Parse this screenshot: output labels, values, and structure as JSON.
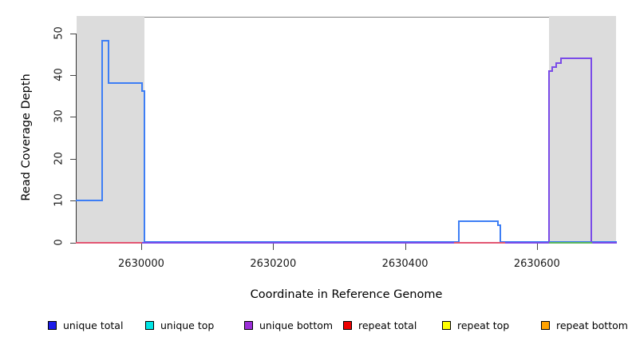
{
  "figure": {
    "x_axis_label": "Coordinate in Reference Genome",
    "y_axis_label": "Read Coverage Depth"
  },
  "legend": {
    "items": [
      {
        "label": "unique total",
        "color": "#1c1ce8"
      },
      {
        "label": "unique top",
        "color": "#00e6e6"
      },
      {
        "label": "unique bottom",
        "color": "#9c2fd8"
      },
      {
        "label": "repeat total",
        "color": "#ee0000"
      },
      {
        "label": "repeat top",
        "color": "#ffff00"
      },
      {
        "label": "repeat bottom",
        "color": "#ffa200"
      }
    ]
  },
  "chart_data": {
    "type": "line",
    "title": "",
    "xlabel": "Coordinate in Reference Genome",
    "ylabel": "Read Coverage Depth",
    "xlim": [
      2629902,
      2630720
    ],
    "ylim": [
      0,
      52
    ],
    "x_ticks": [
      2630000,
      2630200,
      2630400,
      2630600
    ],
    "y_ticks": [
      0,
      10,
      20,
      30,
      40,
      50
    ],
    "grid": false,
    "legend_position": "bottom",
    "highlight_bands_x": [
      [
        2629902,
        2630005
      ],
      [
        2630618,
        2630720
      ]
    ],
    "series": [
      {
        "name": "unique total (coverage line)",
        "color": "#3d7ef5",
        "style": "step",
        "points": [
          [
            2629902,
            10
          ],
          [
            2629941,
            10
          ],
          [
            2629941,
            48
          ],
          [
            2629950,
            48
          ],
          [
            2629950,
            38
          ],
          [
            2630001,
            38
          ],
          [
            2630001,
            36
          ],
          [
            2630005,
            36
          ],
          [
            2630005,
            0
          ],
          [
            2630482,
            0
          ],
          [
            2630482,
            5
          ],
          [
            2630541,
            5
          ],
          [
            2630541,
            4
          ],
          [
            2630545,
            4
          ],
          [
            2630545,
            0
          ],
          [
            2630720,
            0
          ]
        ]
      },
      {
        "name": "unique bottom (coverage line)",
        "color": "#7a4be8",
        "style": "step",
        "points": [
          [
            2629902,
            0
          ],
          [
            2630618,
            0
          ],
          [
            2630618,
            41
          ],
          [
            2630623,
            41
          ],
          [
            2630623,
            42
          ],
          [
            2630629,
            42
          ],
          [
            2630629,
            43
          ],
          [
            2630636,
            43
          ],
          [
            2630636,
            44
          ],
          [
            2630682,
            44
          ],
          [
            2630682,
            0
          ],
          [
            2630720,
            0
          ]
        ]
      },
      {
        "name": "repeat total (baseline segments)",
        "color": "#e25672",
        "style": "zero-segments",
        "x_ranges": [
          [
            2629902,
            2630000
          ],
          [
            2630476,
            2630551
          ]
        ]
      },
      {
        "name": "green baseline segment",
        "color": "#5cb75f",
        "style": "zero-segments",
        "x_ranges": [
          [
            2630620,
            2630682
          ]
        ]
      }
    ]
  }
}
